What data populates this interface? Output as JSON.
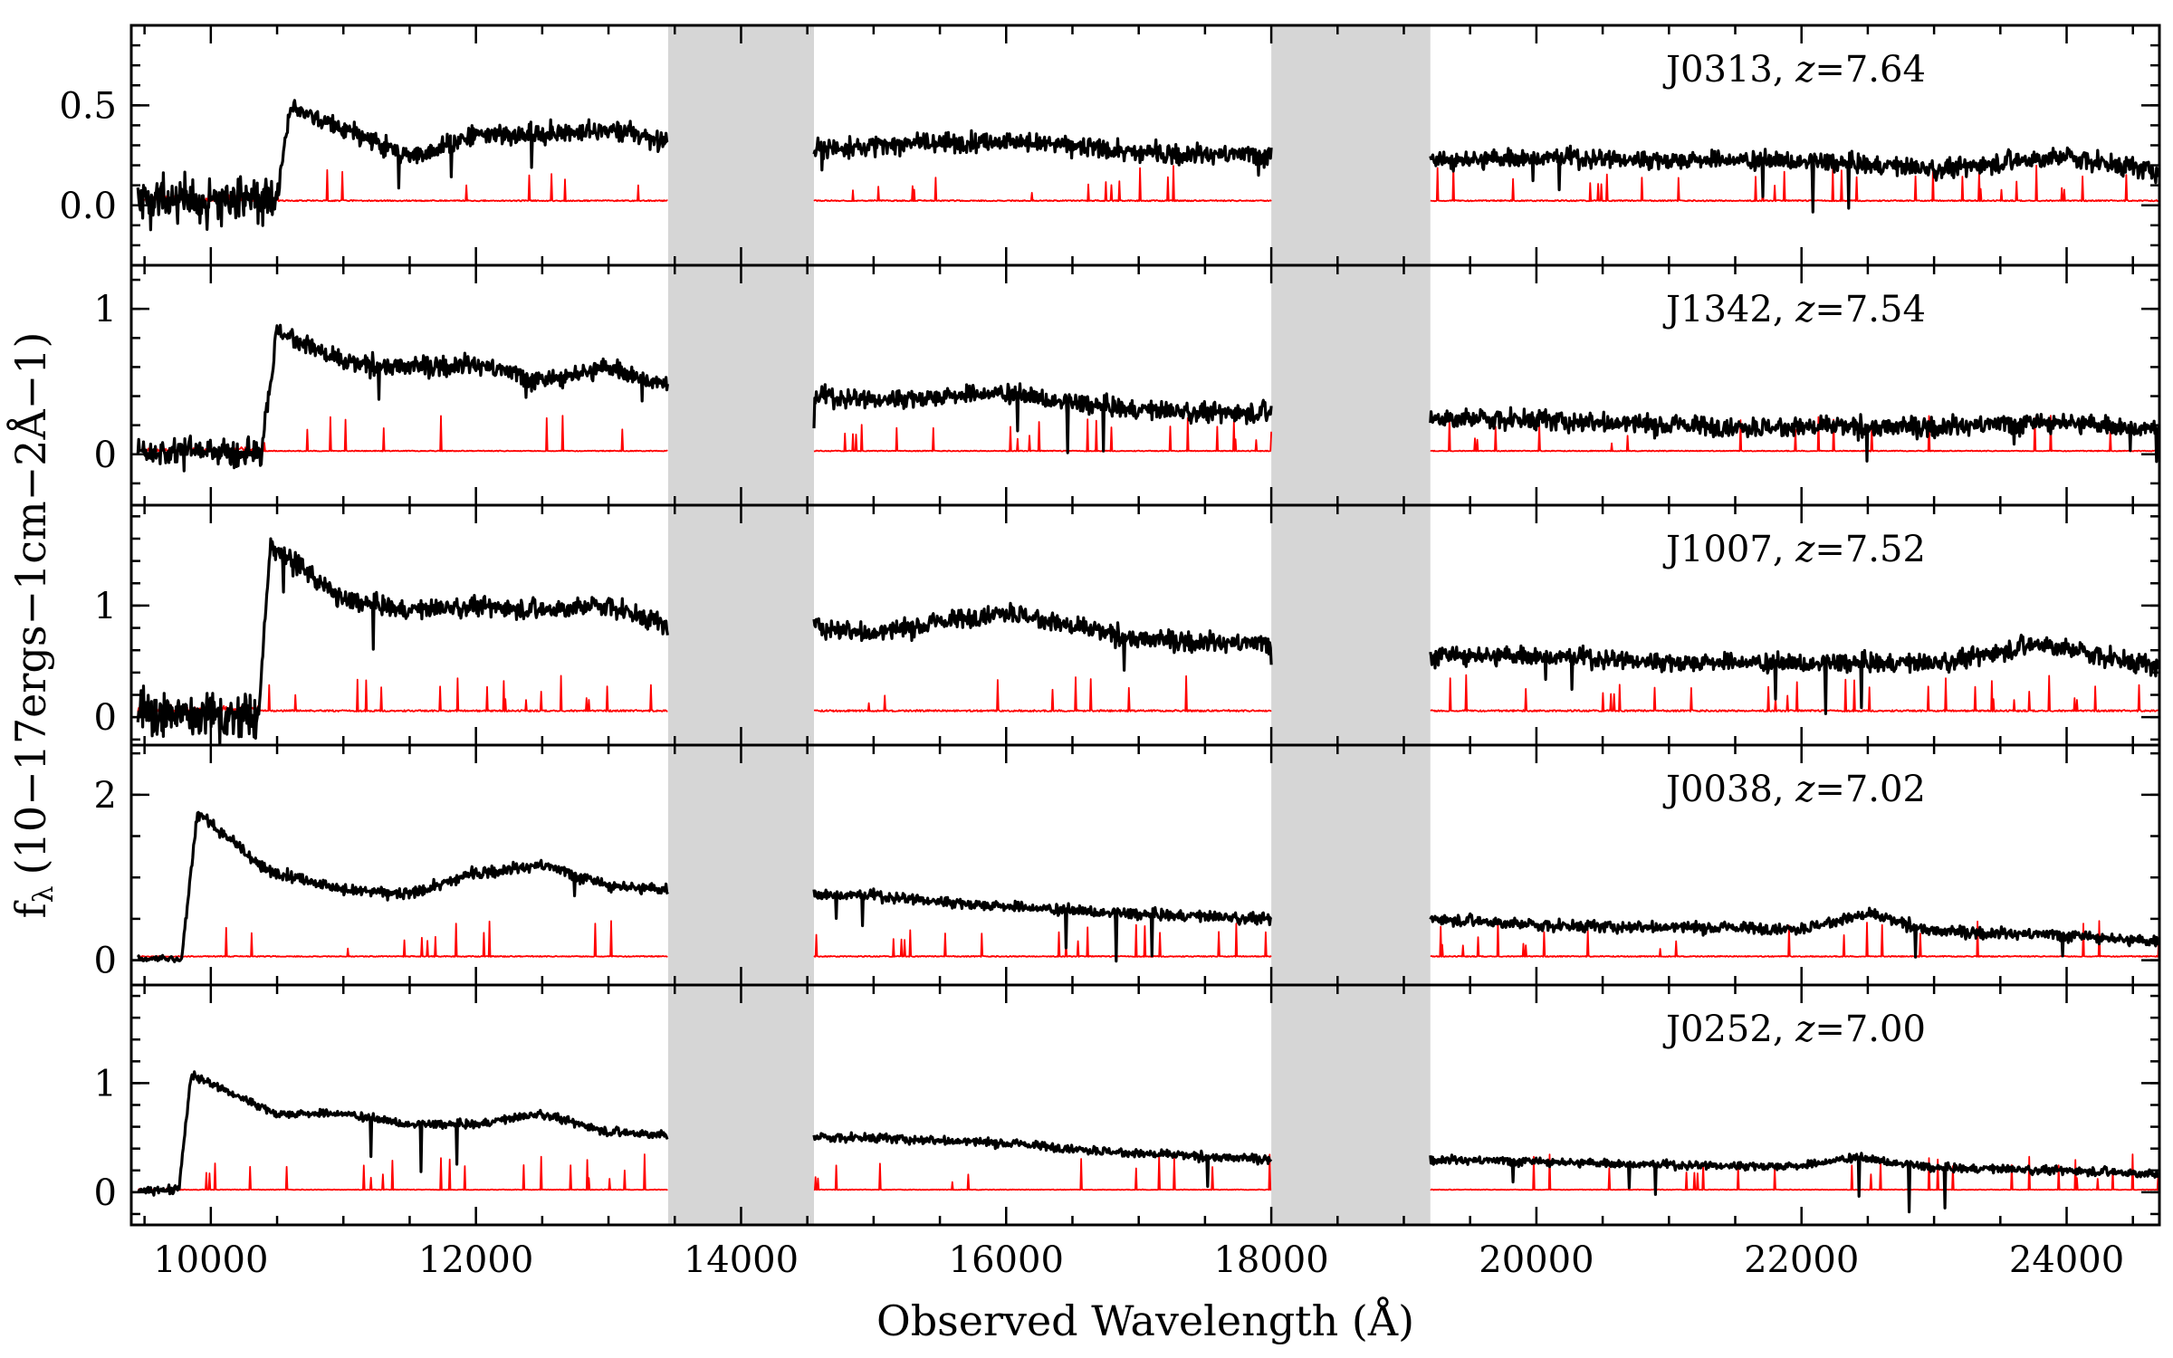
{
  "chart_data": {
    "type": "line",
    "xlabel": "Observed Wavelength (Å)",
    "ylabel": "f",
    "ylabel_sub": "λ",
    "ylabel_units": "(10−17ergs−1cm−2Å−1)",
    "xlim": [
      9400,
      24700
    ],
    "xticks": [
      10000,
      12000,
      14000,
      16000,
      18000,
      20000,
      22000,
      24000
    ],
    "xtick_labels": [
      "10000",
      "12000",
      "14000",
      "16000",
      "18000",
      "20000",
      "22000",
      "24000"
    ],
    "gaps": [
      [
        13450,
        14550
      ],
      [
        18000,
        19200
      ]
    ],
    "lyman_alpha_rest": 1216,
    "panels": [
      {
        "name": "J0313",
        "label": "J0313, z=7.64",
        "label_name": "J0313, ",
        "label_z": "z",
        "label_value": "=7.64",
        "z": 7.64,
        "ylim": [
          -0.3,
          0.9
        ],
        "yticks": [
          0.0,
          0.5
        ],
        "ytick_labels": [
          "0.0",
          "0.5"
        ],
        "minor_step": 0.1,
        "segments": [
          {
            "x": [
              9450,
              10000,
              10500,
              10600,
              11000,
              11500,
              12000,
              12600,
              13000,
              13450
            ],
            "y": [
              0.03,
              0.03,
              0.03,
              0.5,
              0.38,
              0.24,
              0.35,
              0.36,
              0.38,
              0.32
            ]
          },
          {
            "x": [
              14550,
              15000,
              16000,
              16500,
              17000,
              18000
            ],
            "y": [
              0.28,
              0.3,
              0.32,
              0.3,
              0.26,
              0.25
            ]
          },
          {
            "x": [
              19200,
              20000,
              21000,
              22000,
              23000,
              24000,
              24700
            ],
            "y": [
              0.22,
              0.24,
              0.23,
              0.22,
              0.18,
              0.24,
              0.17
            ]
          }
        ],
        "err_level": 0.02,
        "noise": 0.05,
        "blue_noise": 0.12
      },
      {
        "name": "J1342",
        "label": "J1342, z=7.54",
        "label_name": "J1342, ",
        "label_z": "z",
        "label_value": "=7.54",
        "z": 7.54,
        "ylim": [
          -0.35,
          1.3
        ],
        "yticks": [
          0,
          1
        ],
        "ytick_labels": [
          "0",
          "1"
        ],
        "minor_step": 0.2,
        "segments": [
          {
            "x": [
              9450,
              10000,
              10380,
              10500,
              11000,
              11500,
              12000,
              12500,
              13000,
              13450
            ],
            "y": [
              0.02,
              0.02,
              0.02,
              0.85,
              0.62,
              0.6,
              0.62,
              0.5,
              0.6,
              0.47
            ]
          },
          {
            "x": [
              14550,
              15000,
              16000,
              16500,
              17000,
              18000
            ],
            "y": [
              0.4,
              0.38,
              0.42,
              0.35,
              0.3,
              0.28
            ]
          },
          {
            "x": [
              19200,
              20000,
              21000,
              22000,
              23000,
              24000,
              24700
            ],
            "y": [
              0.24,
              0.24,
              0.2,
              0.18,
              0.19,
              0.22,
              0.17
            ]
          }
        ],
        "err_level": 0.02,
        "noise": 0.07,
        "blue_noise": 0.1
      },
      {
        "name": "J1007",
        "label": "J1007, z=7.52",
        "label_name": "J1007, ",
        "label_z": "z",
        "label_value": "=7.52",
        "z": 7.52,
        "ylim": [
          -0.25,
          1.9
        ],
        "yticks": [
          0,
          1
        ],
        "ytick_labels": [
          "0",
          "1"
        ],
        "minor_step": 0.2,
        "segments": [
          {
            "x": [
              9450,
              10000,
              10360,
              10450,
              11000,
              11500,
              12000,
              12500,
              13000,
              13450
            ],
            "y": [
              0.02,
              0.02,
              0.02,
              1.55,
              1.05,
              0.95,
              1.0,
              0.95,
              1.0,
              0.82
            ]
          },
          {
            "x": [
              14550,
              15000,
              16000,
              16500,
              17000,
              18000
            ],
            "y": [
              0.82,
              0.75,
              0.95,
              0.8,
              0.7,
              0.65
            ]
          },
          {
            "x": [
              19200,
              20000,
              21000,
              22000,
              23000,
              23800,
              24700
            ],
            "y": [
              0.55,
              0.55,
              0.5,
              0.48,
              0.48,
              0.65,
              0.45
            ]
          }
        ],
        "err_level": 0.05,
        "noise": 0.09,
        "blue_noise": 0.22
      },
      {
        "name": "J0038",
        "label": "J0038, z=7.02",
        "label_name": "J0038, ",
        "label_z": "z",
        "label_value": "=7.02",
        "z": 7.02,
        "ylim": [
          -0.3,
          2.6
        ],
        "yticks": [
          0,
          2
        ],
        "ytick_labels": [
          "0",
          "2"
        ],
        "minor_step": 0.5,
        "segments": [
          {
            "x": [
              9450,
              9700,
              9780,
              9900,
              10400,
              11000,
              11500,
              12000,
              12500,
              13000,
              13450
            ],
            "y": [
              0.02,
              0.02,
              0.02,
              1.8,
              1.1,
              0.85,
              0.8,
              1.05,
              1.15,
              0.9,
              0.85
            ]
          },
          {
            "x": [
              14550,
              15000,
              16000,
              17000,
              18000
            ],
            "y": [
              0.8,
              0.78,
              0.65,
              0.55,
              0.5
            ]
          },
          {
            "x": [
              19200,
              20000,
              21000,
              22000,
              22500,
              23000,
              24000,
              24700
            ],
            "y": [
              0.5,
              0.42,
              0.4,
              0.38,
              0.55,
              0.35,
              0.3,
              0.22
            ]
          }
        ],
        "err_level": 0.04,
        "noise": 0.07,
        "blue_noise": 0.04
      },
      {
        "name": "J0252",
        "label": "J0252, z=7.00",
        "label_name": "J0252, ",
        "label_z": "z",
        "label_value": "=7.00",
        "z": 7.0,
        "ylim": [
          -0.3,
          1.9
        ],
        "yticks": [
          0,
          1
        ],
        "ytick_labels": [
          "0",
          "1"
        ],
        "minor_step": 0.2,
        "segments": [
          {
            "x": [
              9450,
              9700,
              9760,
              9850,
              10500,
              11000,
              11500,
              12000,
              12500,
              13000,
              13450
            ],
            "y": [
              0.02,
              0.02,
              0.02,
              1.08,
              0.72,
              0.72,
              0.62,
              0.62,
              0.72,
              0.55,
              0.52
            ]
          },
          {
            "x": [
              14550,
              15000,
              16000,
              17000,
              18000
            ],
            "y": [
              0.5,
              0.5,
              0.45,
              0.35,
              0.3
            ]
          },
          {
            "x": [
              19200,
              20000,
              21000,
              22000,
              22400,
              23000,
              24000,
              24700
            ],
            "y": [
              0.3,
              0.28,
              0.25,
              0.24,
              0.32,
              0.22,
              0.2,
              0.16
            ]
          }
        ],
        "err_level": 0.02,
        "noise": 0.04,
        "blue_noise": 0.04
      }
    ],
    "colors": {
      "spectrum": "#000000",
      "error": "#ff0000",
      "gap": "#d6d6d6"
    },
    "grid": false
  }
}
